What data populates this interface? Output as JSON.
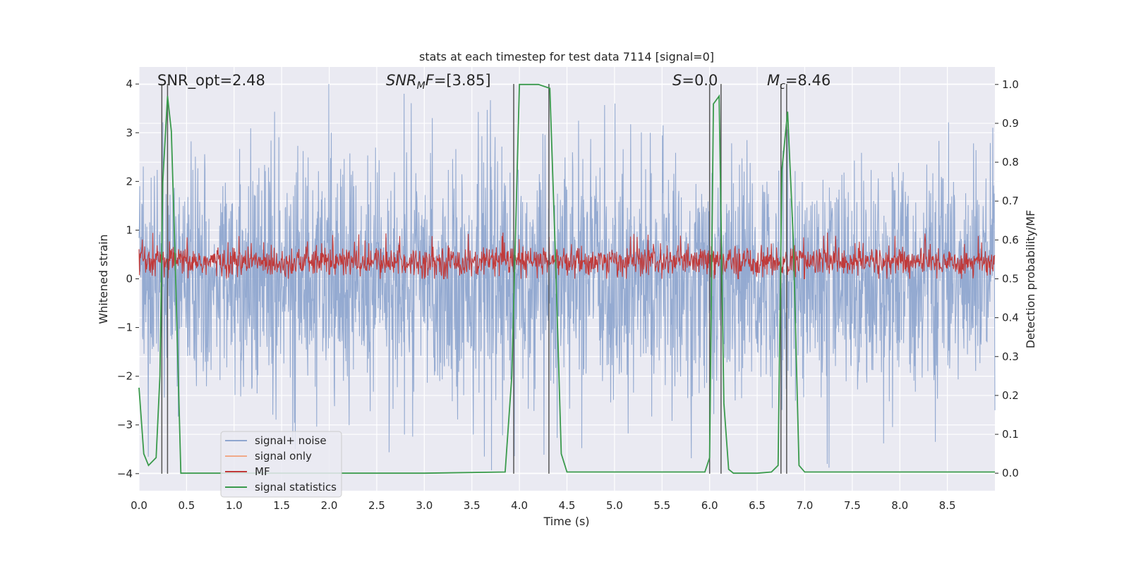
{
  "chart_data": {
    "type": "line",
    "title": "stats at each timestep for test data 7114 [signal=0]",
    "xlabel": "Time (s)",
    "ylabel": "Whitened strain",
    "ylabel_right": "Detection probability/MF",
    "xlim": [
      0.0,
      9.0
    ],
    "ylim": [
      -4.35,
      4.35
    ],
    "ylim_right": [
      -0.045,
      1.045
    ],
    "x_ticks": [
      "0.0",
      "0.5",
      "1.0",
      "1.5",
      "2.0",
      "2.5",
      "3.0",
      "3.5",
      "4.0",
      "4.5",
      "5.0",
      "5.5",
      "6.0",
      "6.5",
      "7.0",
      "7.5",
      "8.0",
      "8.5"
    ],
    "y_ticks": [
      "4",
      "3",
      "2",
      "1",
      "0",
      "−1",
      "−2",
      "−3",
      "−4"
    ],
    "y_ticks_right": [
      "1.0",
      "0.9",
      "0.8",
      "0.7",
      "0.6",
      "0.5",
      "0.4",
      "0.3",
      "0.2",
      "0.1",
      "0.0"
    ],
    "annotations": [
      {
        "id": "snr-opt",
        "text": "SNR_opt=2.48",
        "kind": "plain"
      },
      {
        "id": "snr-mf",
        "base": "SNR",
        "sub": "M",
        "tail": "F=[3.85]",
        "kind": "italic-sub"
      },
      {
        "id": "s-value",
        "base": "S",
        "tail": "=0.0",
        "kind": "italic"
      },
      {
        "id": "mc-value",
        "base": "M",
        "sub": "c",
        "tail": "=8.46",
        "kind": "italic-sub"
      }
    ],
    "legend": {
      "location": "lower-left",
      "entries": [
        {
          "label": "signal+ noise",
          "color": "#8fa6cf"
        },
        {
          "label": "signal only",
          "color": "#f0a989"
        },
        {
          "label": "MF",
          "color": "#c03a3a"
        },
        {
          "label": "signal statistics",
          "color": "#3a9a4c"
        }
      ]
    },
    "series": [
      {
        "name": "signal+ noise",
        "description": "whitened noise trace, roughly uniform spread between -2.5 and 2.5 with spikes to about 4.0 and down to -4.0",
        "envelope_range": [
          -4.0,
          4.0
        ]
      },
      {
        "name": "MF",
        "description": "matched-filter output hovering between 0.0 and 0.95 whitened units",
        "value_range": [
          0.0,
          0.95
        ]
      },
      {
        "name": "signal statistics",
        "axis": "right",
        "x": [
          0.0,
          0.05,
          0.1,
          0.18,
          0.22,
          0.25,
          0.3,
          0.34,
          0.38,
          0.44,
          0.5,
          1.0,
          2.0,
          3.0,
          3.85,
          3.92,
          4.0,
          4.1,
          4.2,
          4.32,
          4.38,
          4.44,
          4.5,
          5.0,
          5.5,
          5.95,
          6.0,
          6.04,
          6.1,
          6.15,
          6.2,
          6.25,
          6.5,
          6.65,
          6.72,
          6.76,
          6.82,
          6.88,
          6.94,
          7.0,
          7.5,
          8.0,
          8.5,
          9.0
        ],
        "y": [
          0.22,
          0.05,
          0.02,
          0.04,
          0.25,
          0.75,
          0.97,
          0.88,
          0.55,
          0.0,
          0.0,
          0.0,
          0.0,
          0.0,
          0.003,
          0.25,
          1.0,
          1.0,
          1.0,
          0.99,
          0.55,
          0.05,
          0.003,
          0.003,
          0.003,
          0.003,
          0.04,
          0.95,
          0.97,
          0.18,
          0.01,
          0.0,
          0.0,
          0.003,
          0.02,
          0.78,
          0.93,
          0.6,
          0.02,
          0.003,
          0.003,
          0.003,
          0.003,
          0.003
        ]
      }
    ],
    "vertical_lines_x": [
      0.24,
      0.3,
      3.94,
      4.31,
      6.0,
      6.12,
      6.75,
      6.81
    ]
  }
}
